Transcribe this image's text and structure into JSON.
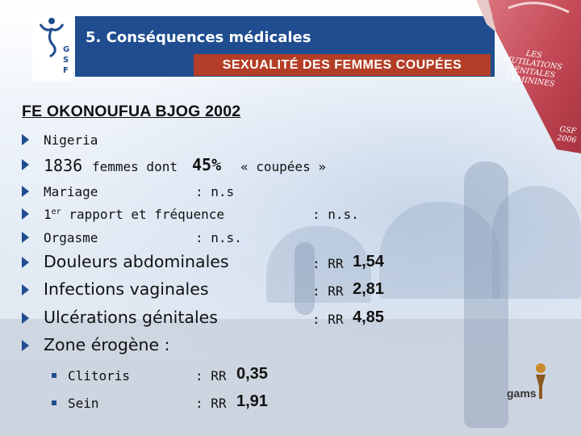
{
  "header": {
    "title": "5. Conséquences médicales",
    "subtitle": "SEXUALITÉ DES FEMMES COUPÉES"
  },
  "logo_gsf": {
    "letters": [
      "G",
      "S",
      "F"
    ]
  },
  "book": {
    "text": "LES MUTILATIONS GÉNITALES FÉMININES",
    "edition": "GSF 2006"
  },
  "study_title": "FE OKONOUFUA BJOG 2002",
  "intro": {
    "country": "Nigeria",
    "count": "1836",
    "count_suffix": "femmes dont",
    "percent": "45%",
    "percent_suffix": "« coupées »"
  },
  "small_items": [
    {
      "label": "Mariage",
      "result": ": n.s"
    },
    {
      "label_main": "1",
      "label_sup": "er",
      "label_rest": " rapport et fréquence",
      "result": ": n.s."
    },
    {
      "label": "Orgasme",
      "result": ": n.s."
    }
  ],
  "big_items": [
    {
      "label": "Douleurs abdominales",
      "rr_prefix": ": RR",
      "rr_value": "1,54"
    },
    {
      "label": "Infections vaginales",
      "rr_prefix": ": RR",
      "rr_value": "2,81"
    },
    {
      "label": "Ulcérations génitales",
      "rr_prefix": ": RR",
      "rr_value": "4,85"
    },
    {
      "label": "Zone érogène :"
    }
  ],
  "sub_items": [
    {
      "label": "Clitoris",
      "rr_prefix": ": RR",
      "rr_value": "0,35"
    },
    {
      "label": "Sein",
      "rr_prefix": ": RR",
      "rr_value": "1,91"
    }
  ],
  "gams_logo": {
    "text": "gams"
  },
  "colors": {
    "header_blue": "#1f4d8f",
    "subtitle_red": "#b33d26",
    "bullet_blue": "#1f4d8f"
  }
}
